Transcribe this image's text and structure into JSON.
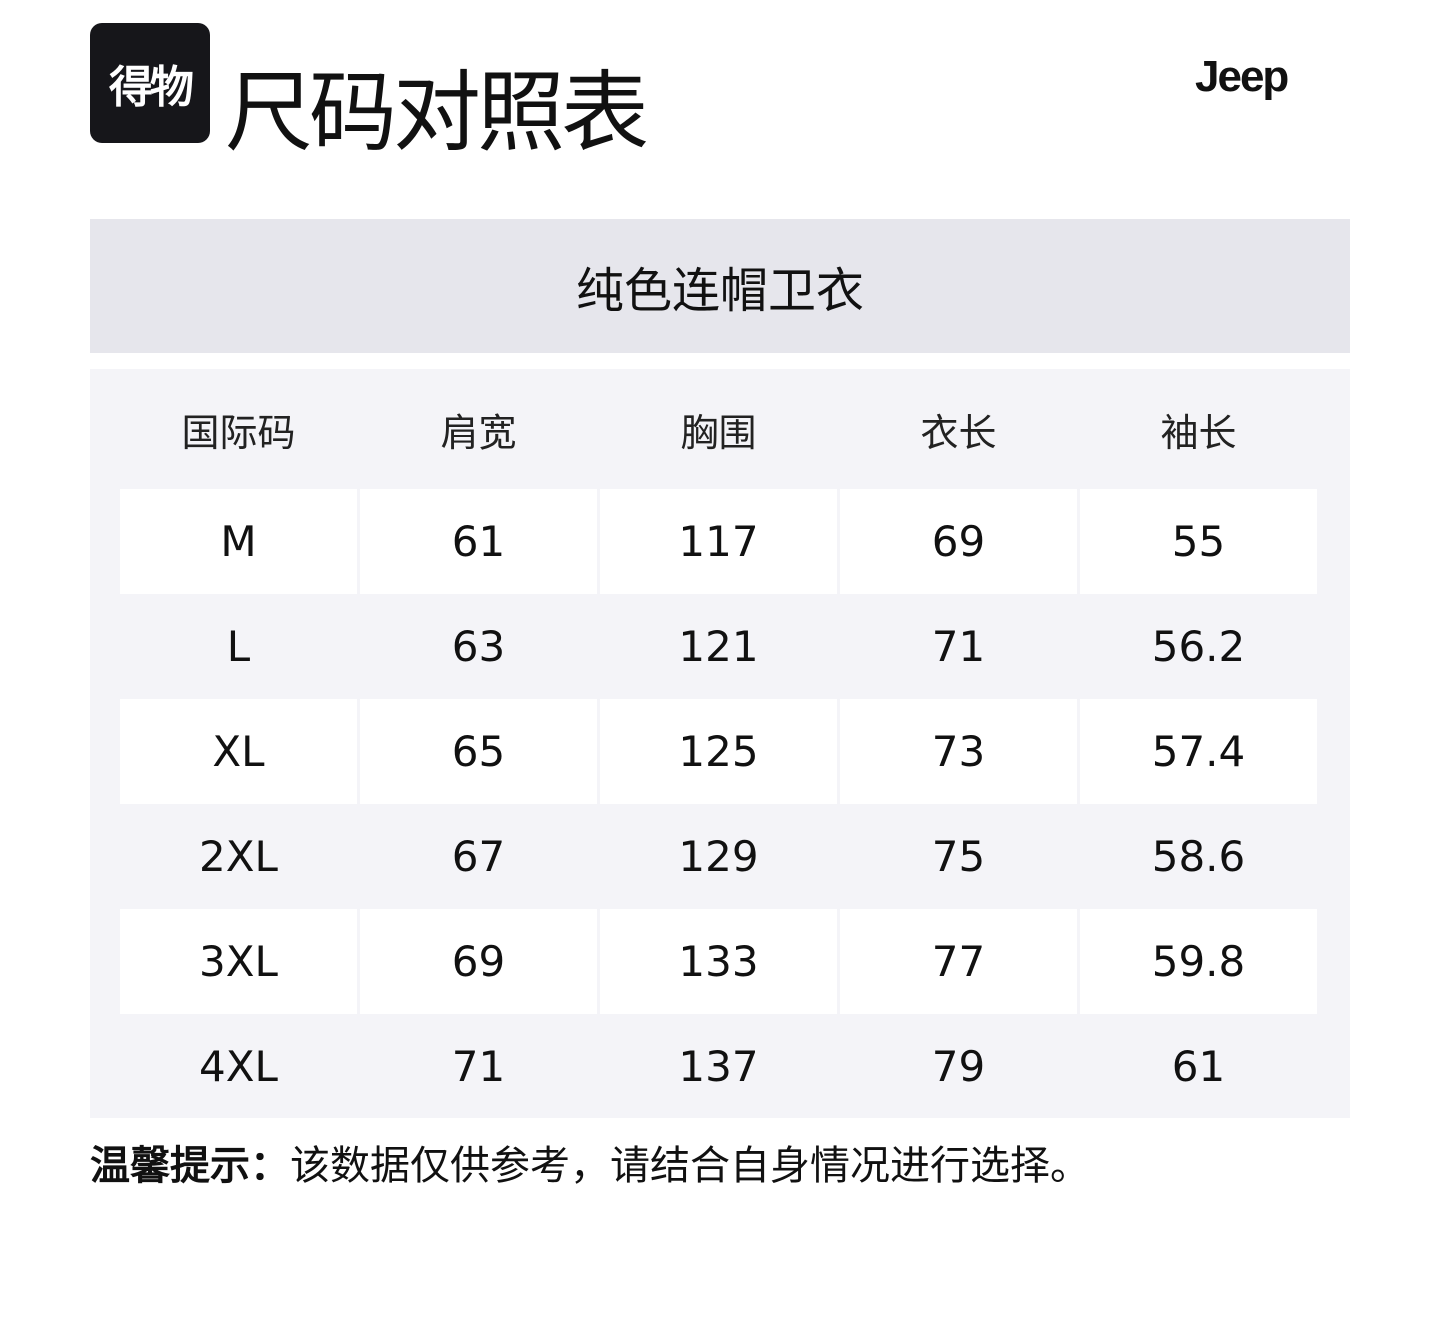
{
  "logo": "得物",
  "title": "尺码对照表",
  "brand": "Jeep",
  "product": "纯色连帽卫衣",
  "headers": [
    "国际码",
    "肩宽",
    "胸围",
    "衣长",
    "袖长"
  ],
  "rows": [
    [
      "M",
      "61",
      "117",
      "69",
      "55"
    ],
    [
      "L",
      "63",
      "121",
      "71",
      "56.2"
    ],
    [
      "XL",
      "65",
      "125",
      "73",
      "57.4"
    ],
    [
      "2XL",
      "67",
      "129",
      "75",
      "58.6"
    ],
    [
      "3XL",
      "69",
      "133",
      "77",
      "59.8"
    ],
    [
      "4XL",
      "71",
      "137",
      "79",
      "61"
    ]
  ],
  "note": {
    "label": "温馨提示：",
    "text": "该数据仅供参考，请结合自身情况进行选择。"
  }
}
